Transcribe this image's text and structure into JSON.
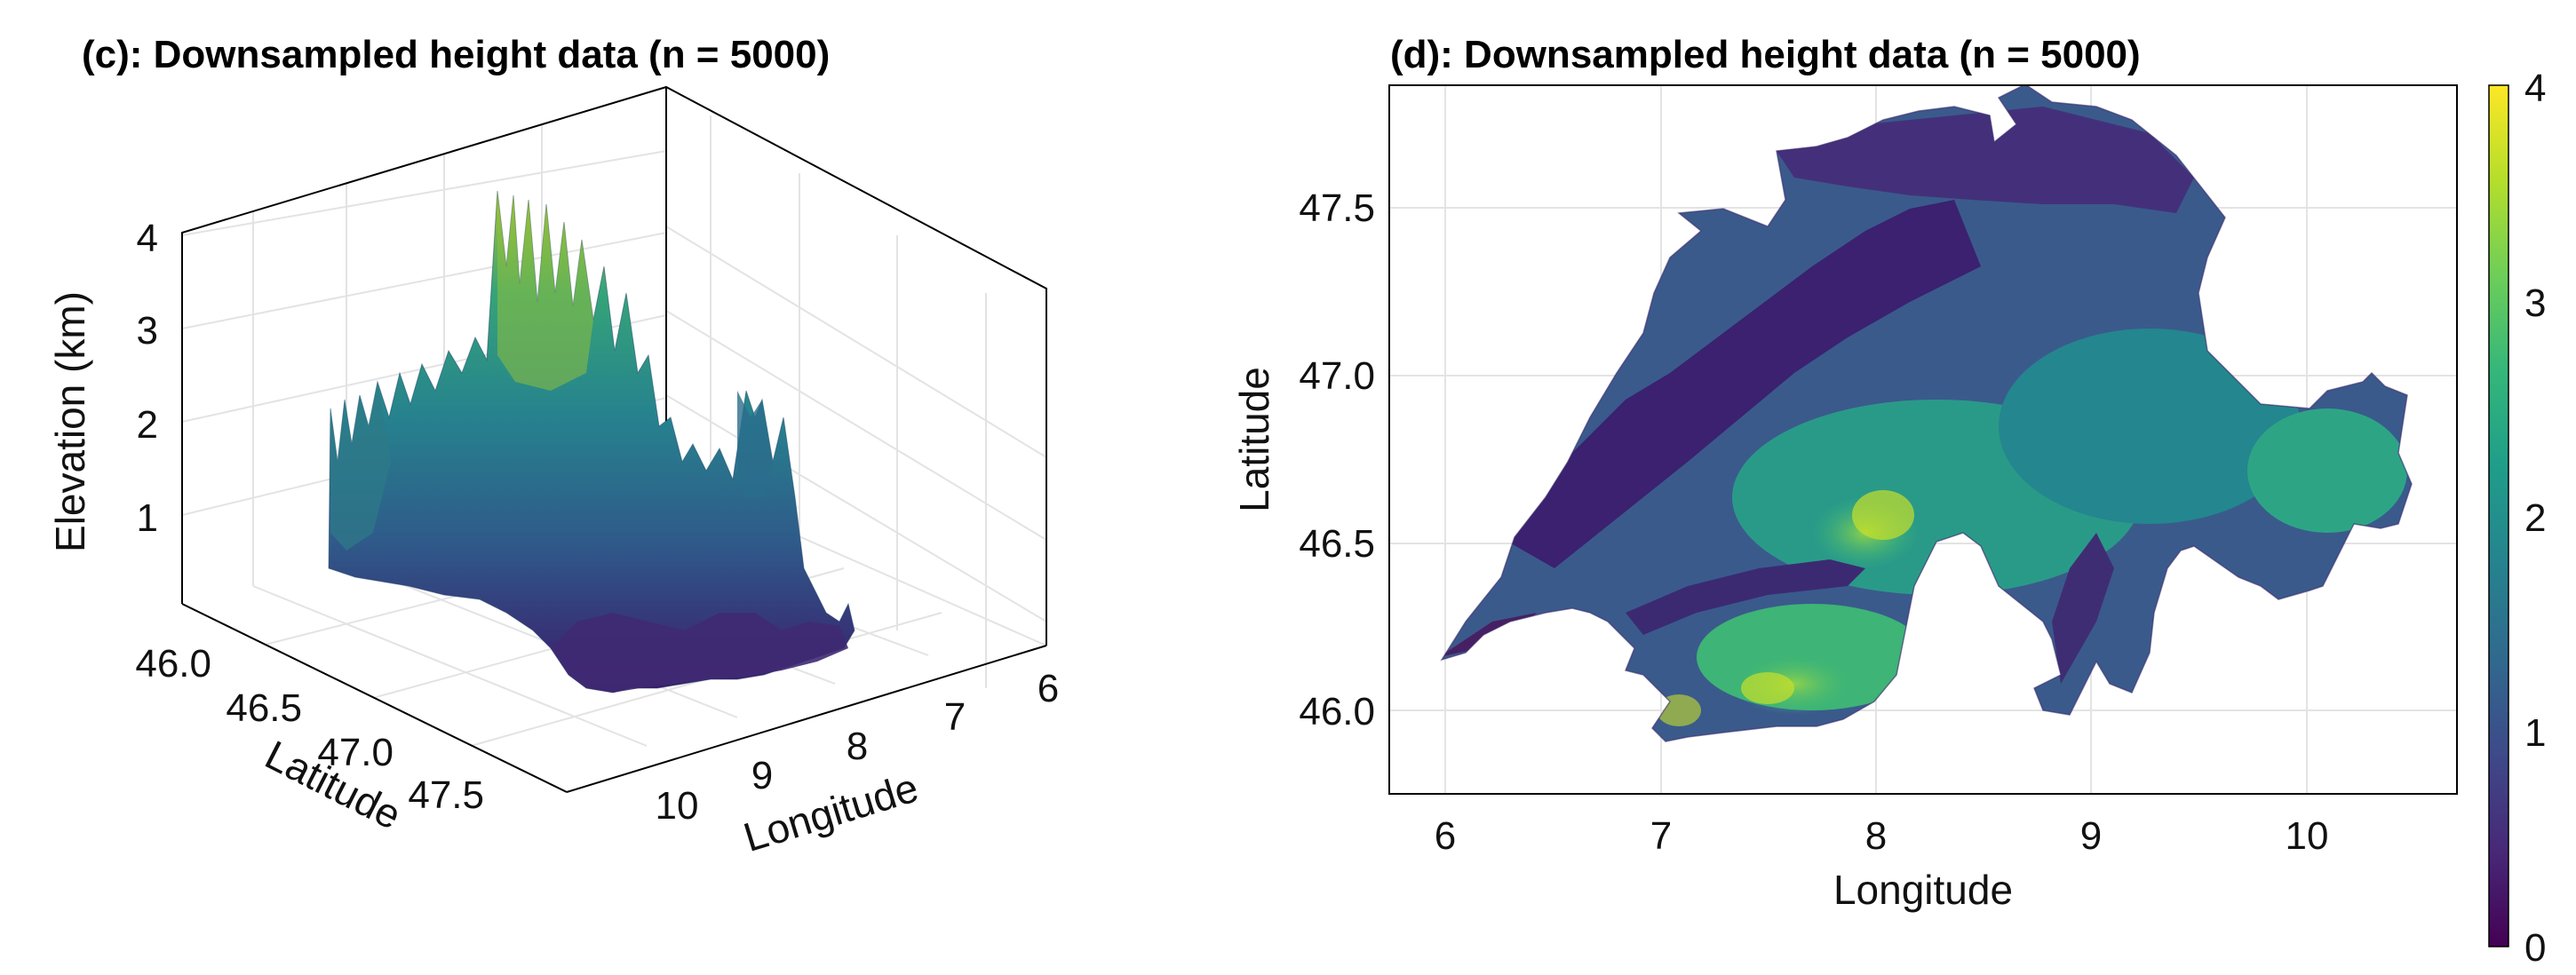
{
  "chart_data": [
    {
      "type": "surface3d",
      "title": "(c): Downsampled height data (n = 5000)",
      "xlabel": "Longitude",
      "ylabel": "Latitude",
      "zlabel": "Elevation (km)",
      "x_ticks": [
        "6",
        "7",
        "8",
        "9",
        "10"
      ],
      "y_ticks": [
        "46.0",
        "46.5",
        "47.0",
        "47.5"
      ],
      "z_ticks": [
        "1",
        "2",
        "3",
        "4"
      ],
      "xlim": [
        5.9,
        10.5
      ],
      "ylim": [
        45.8,
        47.85
      ],
      "zlim": [
        0,
        4.3
      ],
      "colormap": "viridis"
    },
    {
      "type": "heatmap",
      "title": "(d): Downsampled height data (n = 5000)",
      "xlabel": "Longitude",
      "ylabel": "Latitude",
      "x_ticks": [
        "6",
        "7",
        "8",
        "9",
        "10"
      ],
      "y_ticks": [
        "46.0",
        "46.5",
        "47.0",
        "47.5"
      ],
      "xlim": [
        5.75,
        10.72
      ],
      "ylim": [
        45.74,
        47.85
      ],
      "colorbar_ticks": [
        "0",
        "1",
        "2",
        "3",
        "4"
      ],
      "colorbar_range": [
        0,
        4
      ],
      "colormap": "viridis",
      "grid": true
    }
  ],
  "colors": {
    "viridis": [
      "#440154",
      "#482878",
      "#3e4989",
      "#31688e",
      "#26828e",
      "#1f9e89",
      "#35b779",
      "#6ece58",
      "#b5de2b",
      "#fde725"
    ]
  }
}
